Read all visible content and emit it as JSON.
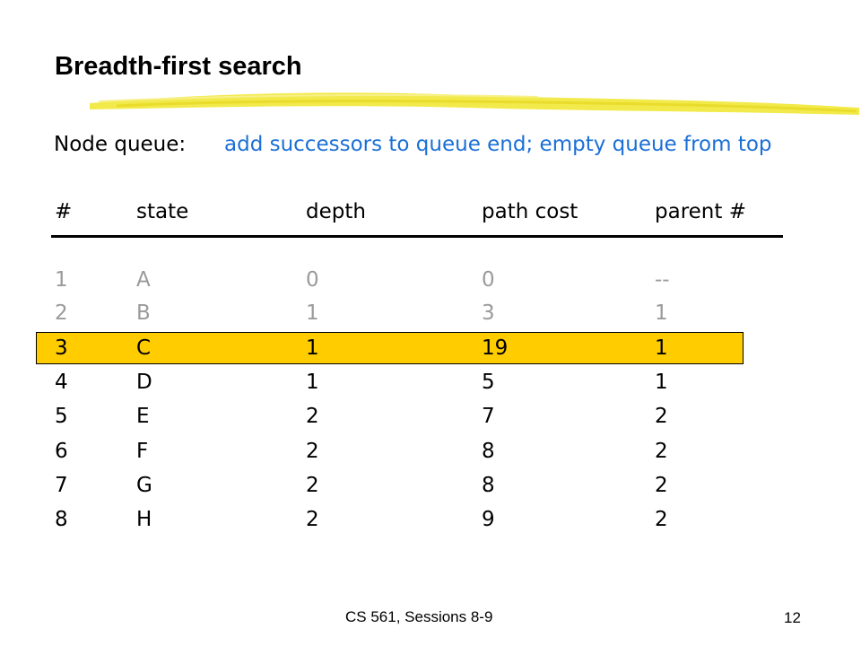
{
  "slide": {
    "title": "Breadth-first search",
    "queue_label": "Node queue:",
    "queue_description": "add successors to queue end; empty queue from top"
  },
  "table": {
    "columns": [
      "#",
      "state",
      "depth",
      "path cost",
      "parent #"
    ],
    "rows": [
      [
        "1",
        "A",
        "0",
        "0",
        "--"
      ],
      [
        "2",
        "B",
        "1",
        "3",
        "1"
      ],
      [
        "3",
        "C",
        "1",
        "19",
        "1"
      ],
      [
        "4",
        "D",
        "1",
        "5",
        "1"
      ],
      [
        "5",
        "E",
        "2",
        "7",
        "2"
      ],
      [
        "6",
        "F",
        "2",
        "8",
        "2"
      ],
      [
        "7",
        "G",
        "2",
        "8",
        "2"
      ],
      [
        "8",
        "H",
        "2",
        "9",
        "2"
      ]
    ],
    "highlighted_row": 3,
    "dimmed_rows": [
      1,
      2
    ]
  },
  "footer": {
    "course": "CS 561,  Sessions 8-9",
    "page_number": "12"
  },
  "colors": {
    "accent_blue": "#1a6fd6",
    "highlight_fill": "#ffcc00",
    "title_stroke": "#f2ea4a",
    "rule": "#000000",
    "dim_text": "#9a9a9a"
  }
}
